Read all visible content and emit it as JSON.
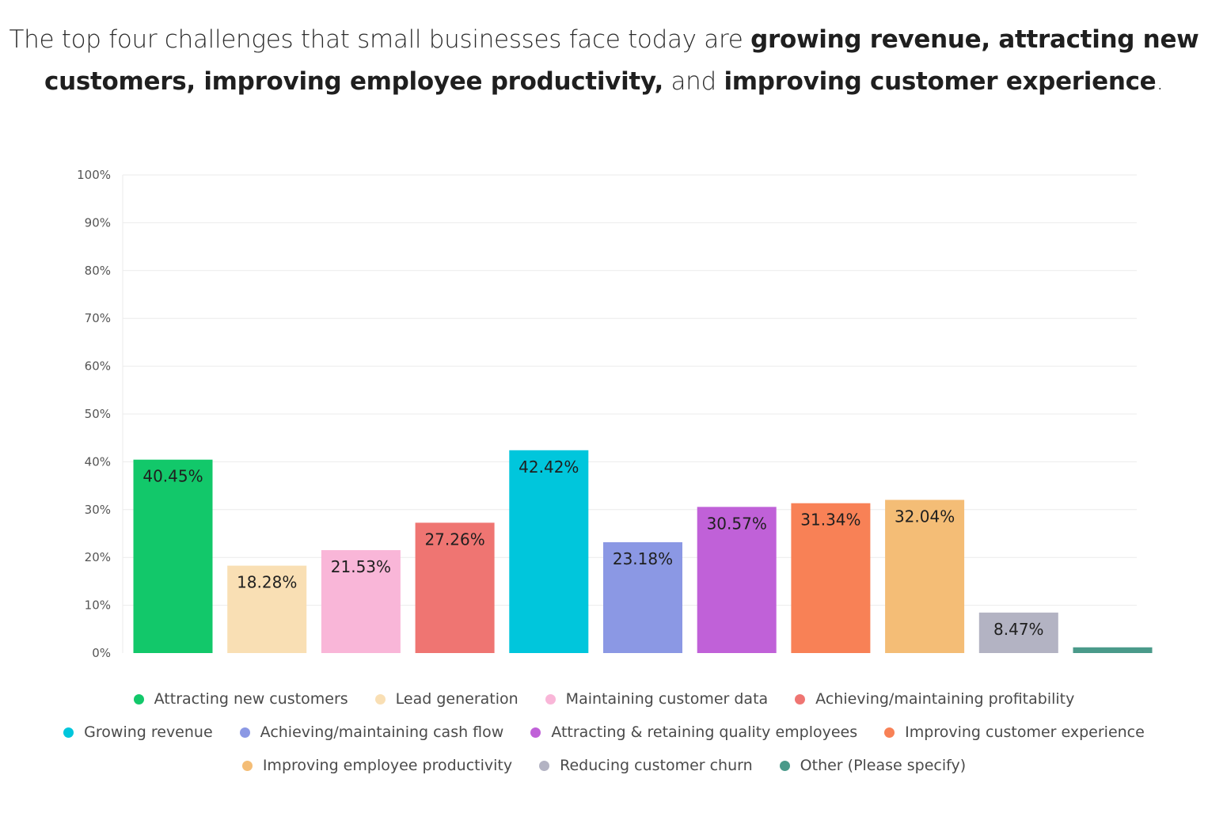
{
  "headline": {
    "part1": "The top four challenges that small businesses face today are ",
    "bold1": "growing revenue, attracting new customers, improving employee productivity,",
    "part2": " and ",
    "bold2": "improving customer experience",
    "part3": "."
  },
  "chart_data": {
    "type": "bar",
    "title": "",
    "xlabel": "",
    "ylabel": "",
    "ylim": [
      0,
      100
    ],
    "yticks": [
      "0%",
      "10%",
      "20%",
      "30%",
      "40%",
      "50%",
      "60%",
      "70%",
      "80%",
      "90%",
      "100%"
    ],
    "grid": true,
    "legend_position": "bottom",
    "categories": [
      "Attracting new customers",
      "Lead generation",
      "Maintaining customer data",
      "Achieving/maintaining profitability",
      "Growing revenue",
      "Achieving/maintaining cash flow",
      "Attracting & retaining quality employees",
      "Improving customer experience",
      "Improving employee productivity",
      "Reducing customer churn",
      "Other (Please specify)"
    ],
    "values": [
      40.45,
      18.28,
      21.53,
      27.26,
      42.42,
      23.18,
      30.57,
      31.34,
      32.04,
      8.47,
      1.2
    ],
    "labels": [
      "40.45%",
      "18.28%",
      "21.53%",
      "27.26%",
      "42.42%",
      "23.18%",
      "30.57%",
      "31.34%",
      "32.04%",
      "8.47%",
      ""
    ],
    "colors": [
      "#12c86a",
      "#f9dfb4",
      "#f9b6d8",
      "#ef7572",
      "#00c6dc",
      "#8b98e4",
      "#c061d8",
      "#f88156",
      "#f4bd76",
      "#b3b3c3",
      "#4a9a8a"
    ],
    "legend_rows": [
      [
        0,
        1,
        2,
        3
      ],
      [
        4,
        5,
        6,
        7
      ],
      [
        8,
        9,
        10
      ]
    ]
  }
}
